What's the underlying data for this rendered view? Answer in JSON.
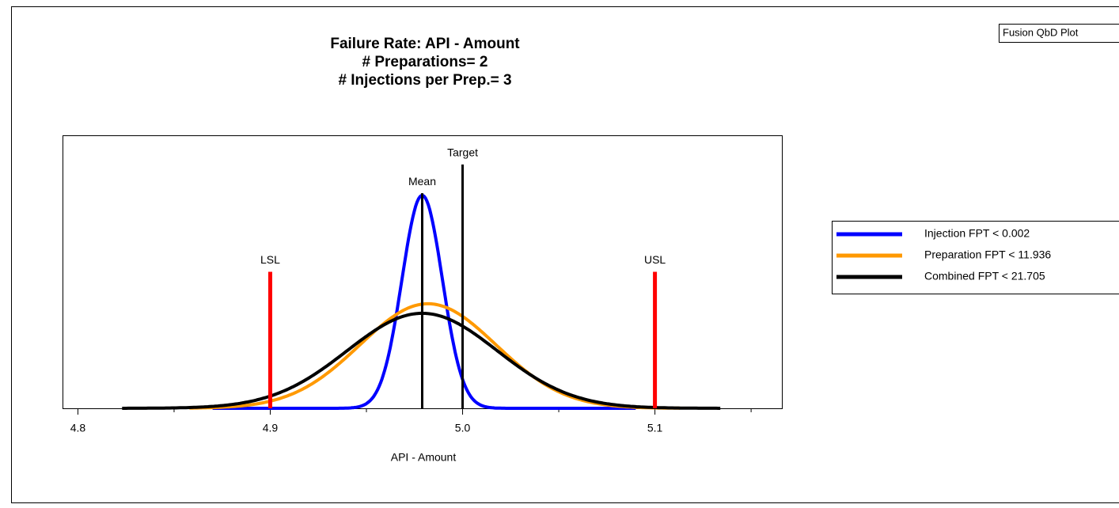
{
  "chart_data": {
    "type": "density",
    "title": [
      "Failure Rate: API - Amount",
      "# Preparations= 2",
      "# Injections per Prep.= 3"
    ],
    "badge": "Fusion QbD Plot",
    "xlabel": "API - Amount",
    "xlim": [
      4.792,
      5.166
    ],
    "ylim": [
      0,
      1
    ],
    "xticks": [
      4.8,
      4.9,
      {
        "value": 5,
        "label": "5.0"
      },
      5.1
    ],
    "xminorticks": [
      4.85,
      4.95,
      5.05,
      5.15
    ],
    "series": [
      {
        "name": "Injection FPT < 0.002",
        "color": "#0000ff",
        "mean": 4.979,
        "sd": 0.0105,
        "peak": 0.78,
        "xrange": [
          4.87,
          5.09
        ]
      },
      {
        "name": "Preparation FPT < 11.936",
        "color": "#ff9900",
        "mean": 4.982,
        "sd": 0.0354,
        "peak": 0.383,
        "xrange": [
          4.858,
          5.113
        ]
      },
      {
        "name": "Combined FPT < 21.705",
        "color": "#000000",
        "mean": 4.979,
        "sd": 0.039,
        "peak": 0.348,
        "xrange": [
          4.823,
          5.134
        ]
      }
    ],
    "reference_lines": [
      {
        "label": "LSL",
        "value": 4.9,
        "height": 0.5,
        "color": "#ff0000"
      },
      {
        "label": "USL",
        "value": 5.1,
        "height": 0.5,
        "color": "#ff0000"
      },
      {
        "label": "Target",
        "value": 5,
        "height": 0.893,
        "color": "#000000"
      },
      {
        "label": "Mean",
        "value": 4.979,
        "height": 0.788,
        "color": "#000000"
      }
    ],
    "legend": "right"
  }
}
